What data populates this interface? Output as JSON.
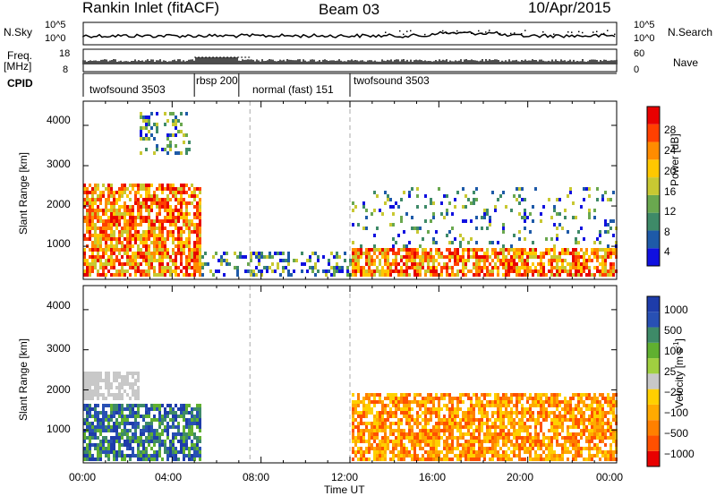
{
  "header": {
    "station": "Rankin Inlet (fitACF)",
    "beam": "Beam 03",
    "date": "10/Apr/2015"
  },
  "strip_labels": {
    "nsky": "N.Sky",
    "nsky_ticks": [
      "10^5",
      "10^0"
    ],
    "nsearch": "N.Search",
    "nsearch_ticks": [
      "10^5",
      "10^0"
    ],
    "freq": "Freq.",
    "freq_unit": "[MHz]",
    "freq_ticks": [
      "18",
      "8"
    ],
    "nave": "Nave",
    "nave_ticks": [
      "60",
      "0"
    ],
    "cpid": "CPID"
  },
  "cpid_segments": [
    {
      "label": "twofsound 3503",
      "start_hour": 0.0
    },
    {
      "label": "rbsp 200",
      "start_hour": 5.0
    },
    {
      "label": "normal (fast) 151",
      "start_hour": 7.0
    },
    {
      "label": "twofsound 3503",
      "start_hour": 12.0
    }
  ],
  "chart_data": [
    {
      "type": "heatmap",
      "panel": "power",
      "xlabel": "",
      "ylabel": "Slant Range [km]",
      "xlim": [
        0,
        24
      ],
      "ylim": [
        180,
        4600
      ],
      "yticks": [
        "1000",
        "2000",
        "3000",
        "4000"
      ],
      "colorbar": {
        "label": "Power [dB]",
        "ticks": [
          "4",
          "8",
          "12",
          "16",
          "20",
          "24",
          "28"
        ],
        "colors": [
          "#1010e0",
          "#1e5aa8",
          "#3e8a68",
          "#6aa84f",
          "#c8c832",
          "#ffc800",
          "#ff8c00",
          "#ff4000",
          "#e80000"
        ]
      },
      "dashed_markers_hours": [
        7.5,
        12.0
      ],
      "regions": [
        {
          "x": [
            0.0,
            5.2
          ],
          "y": [
            300,
            2600
          ],
          "level": "high",
          "note": "strong echoes"
        },
        {
          "x": [
            2.5,
            4.8
          ],
          "y": [
            3300,
            4400
          ],
          "level": "medium"
        },
        {
          "x": [
            5.2,
            12.0
          ],
          "y": [
            250,
            900
          ],
          "level": "medium"
        },
        {
          "x": [
            12.0,
            24.0
          ],
          "y": [
            300,
            1000
          ],
          "level": "high"
        },
        {
          "x": [
            12.0,
            24.0
          ],
          "y": [
            1000,
            2500
          ],
          "level": "low",
          "note": "scattered"
        }
      ]
    },
    {
      "type": "heatmap",
      "panel": "velocity",
      "xlabel": "Time UT",
      "ylabel": "Slant Range [km]",
      "xlim": [
        0,
        24
      ],
      "ylim": [
        180,
        4600
      ],
      "xticks": [
        "00:00",
        "04:00",
        "08:00",
        "12:00",
        "16:00",
        "20:00",
        "00:00"
      ],
      "yticks": [
        "1000",
        "2000",
        "3000",
        "4000"
      ],
      "colorbar": {
        "label": "Velocity [m s",
        "label_sup": "-1",
        "label_end": "]",
        "ticks": [
          "1000",
          "500",
          "100",
          "25",
          "−25",
          "−100",
          "−500",
          "−1000"
        ],
        "colors": [
          "#1e3caa",
          "#2850b4",
          "#3e8a68",
          "#60b030",
          "#a0d040",
          "#c8c8c8",
          "#ffd000",
          "#ffaa00",
          "#ff8000",
          "#ff5000",
          "#e80000"
        ]
      },
      "dashed_markers_hours": [
        7.5,
        12.0
      ],
      "regions": [
        {
          "x": [
            0.0,
            2.5
          ],
          "y": [
            1800,
            2500
          ],
          "level": "ground-scatter"
        },
        {
          "x": [
            0.0,
            5.2
          ],
          "y": [
            300,
            1700
          ],
          "level": "positive",
          "note": "blue/green"
        },
        {
          "x": [
            12.0,
            24.0
          ],
          "y": [
            300,
            2000
          ],
          "level": "negative",
          "note": "orange"
        }
      ]
    }
  ]
}
